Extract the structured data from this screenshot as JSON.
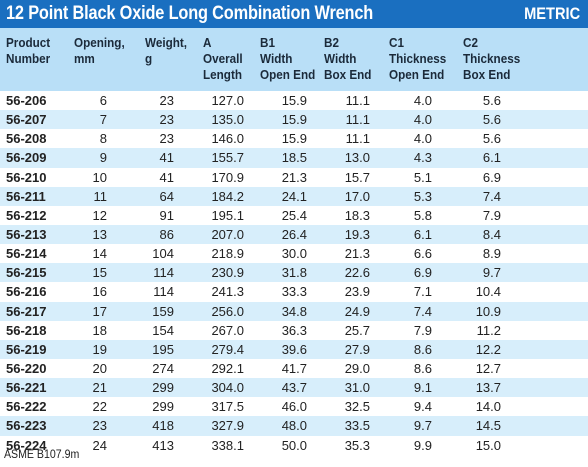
{
  "title": "12 Point Black Oxide Long Combination Wrench",
  "badge": "METRIC",
  "headers": [
    "Product\nNumber",
    "Opening,\nmm",
    "Weight,\ng",
    "A\nOverall\nLength",
    "B1\nWidth\nOpen End",
    "B2\nWidth\nBox End",
    "C1\nThickness\nOpen End",
    "C2\nThickness\nBox End"
  ],
  "rows": [
    [
      "56-206",
      "6",
      "23",
      "127.0",
      "15.9",
      "11.1",
      "4.0",
      "5.6"
    ],
    [
      "56-207",
      "7",
      "23",
      "135.0",
      "15.9",
      "11.1",
      "4.0",
      "5.6"
    ],
    [
      "56-208",
      "8",
      "23",
      "146.0",
      "15.9",
      "11.1",
      "4.0",
      "5.6"
    ],
    [
      "56-209",
      "9",
      "41",
      "155.7",
      "18.5",
      "13.0",
      "4.3",
      "6.1"
    ],
    [
      "56-210",
      "10",
      "41",
      "170.9",
      "21.3",
      "15.7",
      "5.1",
      "6.9"
    ],
    [
      "56-211",
      "11",
      "64",
      "184.2",
      "24.1",
      "17.0",
      "5.3",
      "7.4"
    ],
    [
      "56-212",
      "12",
      "91",
      "195.1",
      "25.4",
      "18.3",
      "5.8",
      "7.9"
    ],
    [
      "56-213",
      "13",
      "86",
      "207.0",
      "26.4",
      "19.3",
      "6.1",
      "8.4"
    ],
    [
      "56-214",
      "14",
      "104",
      "218.9",
      "30.0",
      "21.3",
      "6.6",
      "8.9"
    ],
    [
      "56-215",
      "15",
      "114",
      "230.9",
      "31.8",
      "22.6",
      "6.9",
      "9.7"
    ],
    [
      "56-216",
      "16",
      "114",
      "241.3",
      "33.3",
      "23.9",
      "7.1",
      "10.4"
    ],
    [
      "56-217",
      "17",
      "159",
      "256.0",
      "34.8",
      "24.9",
      "7.4",
      "10.9"
    ],
    [
      "56-218",
      "18",
      "154",
      "267.0",
      "36.3",
      "25.7",
      "7.9",
      "11.2"
    ],
    [
      "56-219",
      "19",
      "195",
      "279.4",
      "39.6",
      "27.9",
      "8.6",
      "12.2"
    ],
    [
      "56-220",
      "20",
      "274",
      "292.1",
      "41.7",
      "29.0",
      "8.6",
      "12.7"
    ],
    [
      "56-221",
      "21",
      "299",
      "304.0",
      "43.7",
      "31.0",
      "9.1",
      "13.7"
    ],
    [
      "56-222",
      "22",
      "299",
      "317.5",
      "46.0",
      "32.5",
      "9.4",
      "14.0"
    ],
    [
      "56-223",
      "23",
      "418",
      "327.9",
      "48.0",
      "33.5",
      "9.7",
      "14.5"
    ],
    [
      "56-224",
      "24",
      "413",
      "338.1",
      "50.0",
      "35.3",
      "9.9",
      "15.0"
    ]
  ],
  "footer": "ASME B107.9m",
  "colors": {
    "title_bar": "#1a6fc0",
    "header_bg": "#b9dff7",
    "alt_row_bg": "#d7eefb"
  }
}
